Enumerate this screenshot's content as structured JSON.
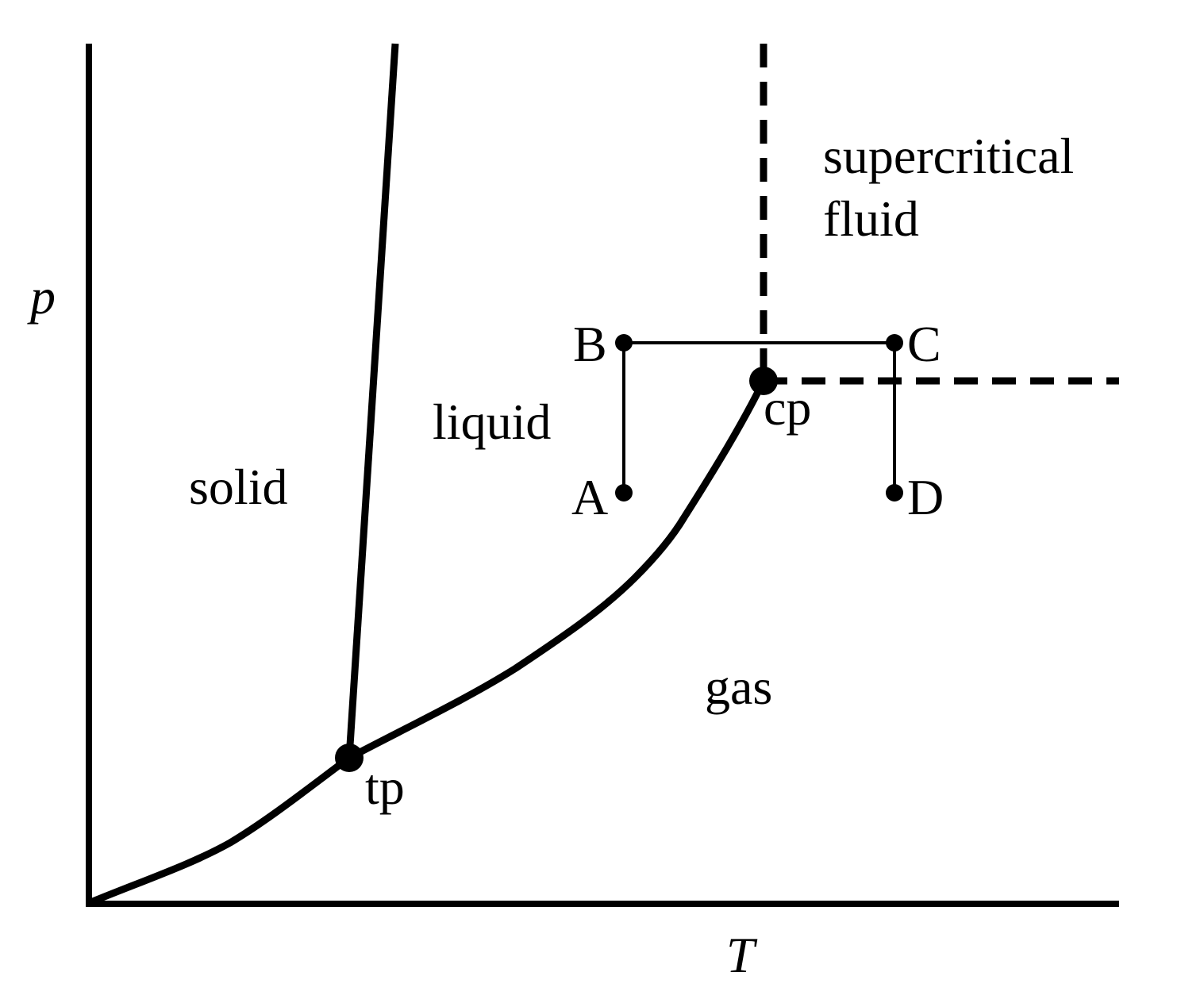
{
  "axes": {
    "y_label": "p",
    "x_label": "T"
  },
  "regions": {
    "solid": "solid",
    "liquid": "liquid",
    "gas": "gas",
    "supercritical_line1": "supercritical",
    "supercritical_line2": "fluid"
  },
  "special_points": {
    "triple_point": "tp",
    "critical_point": "cp"
  },
  "path_points": {
    "A": "A",
    "B": "B",
    "C": "C",
    "D": "D"
  },
  "colors": {
    "ink": "#000000",
    "background": "#ffffff"
  }
}
